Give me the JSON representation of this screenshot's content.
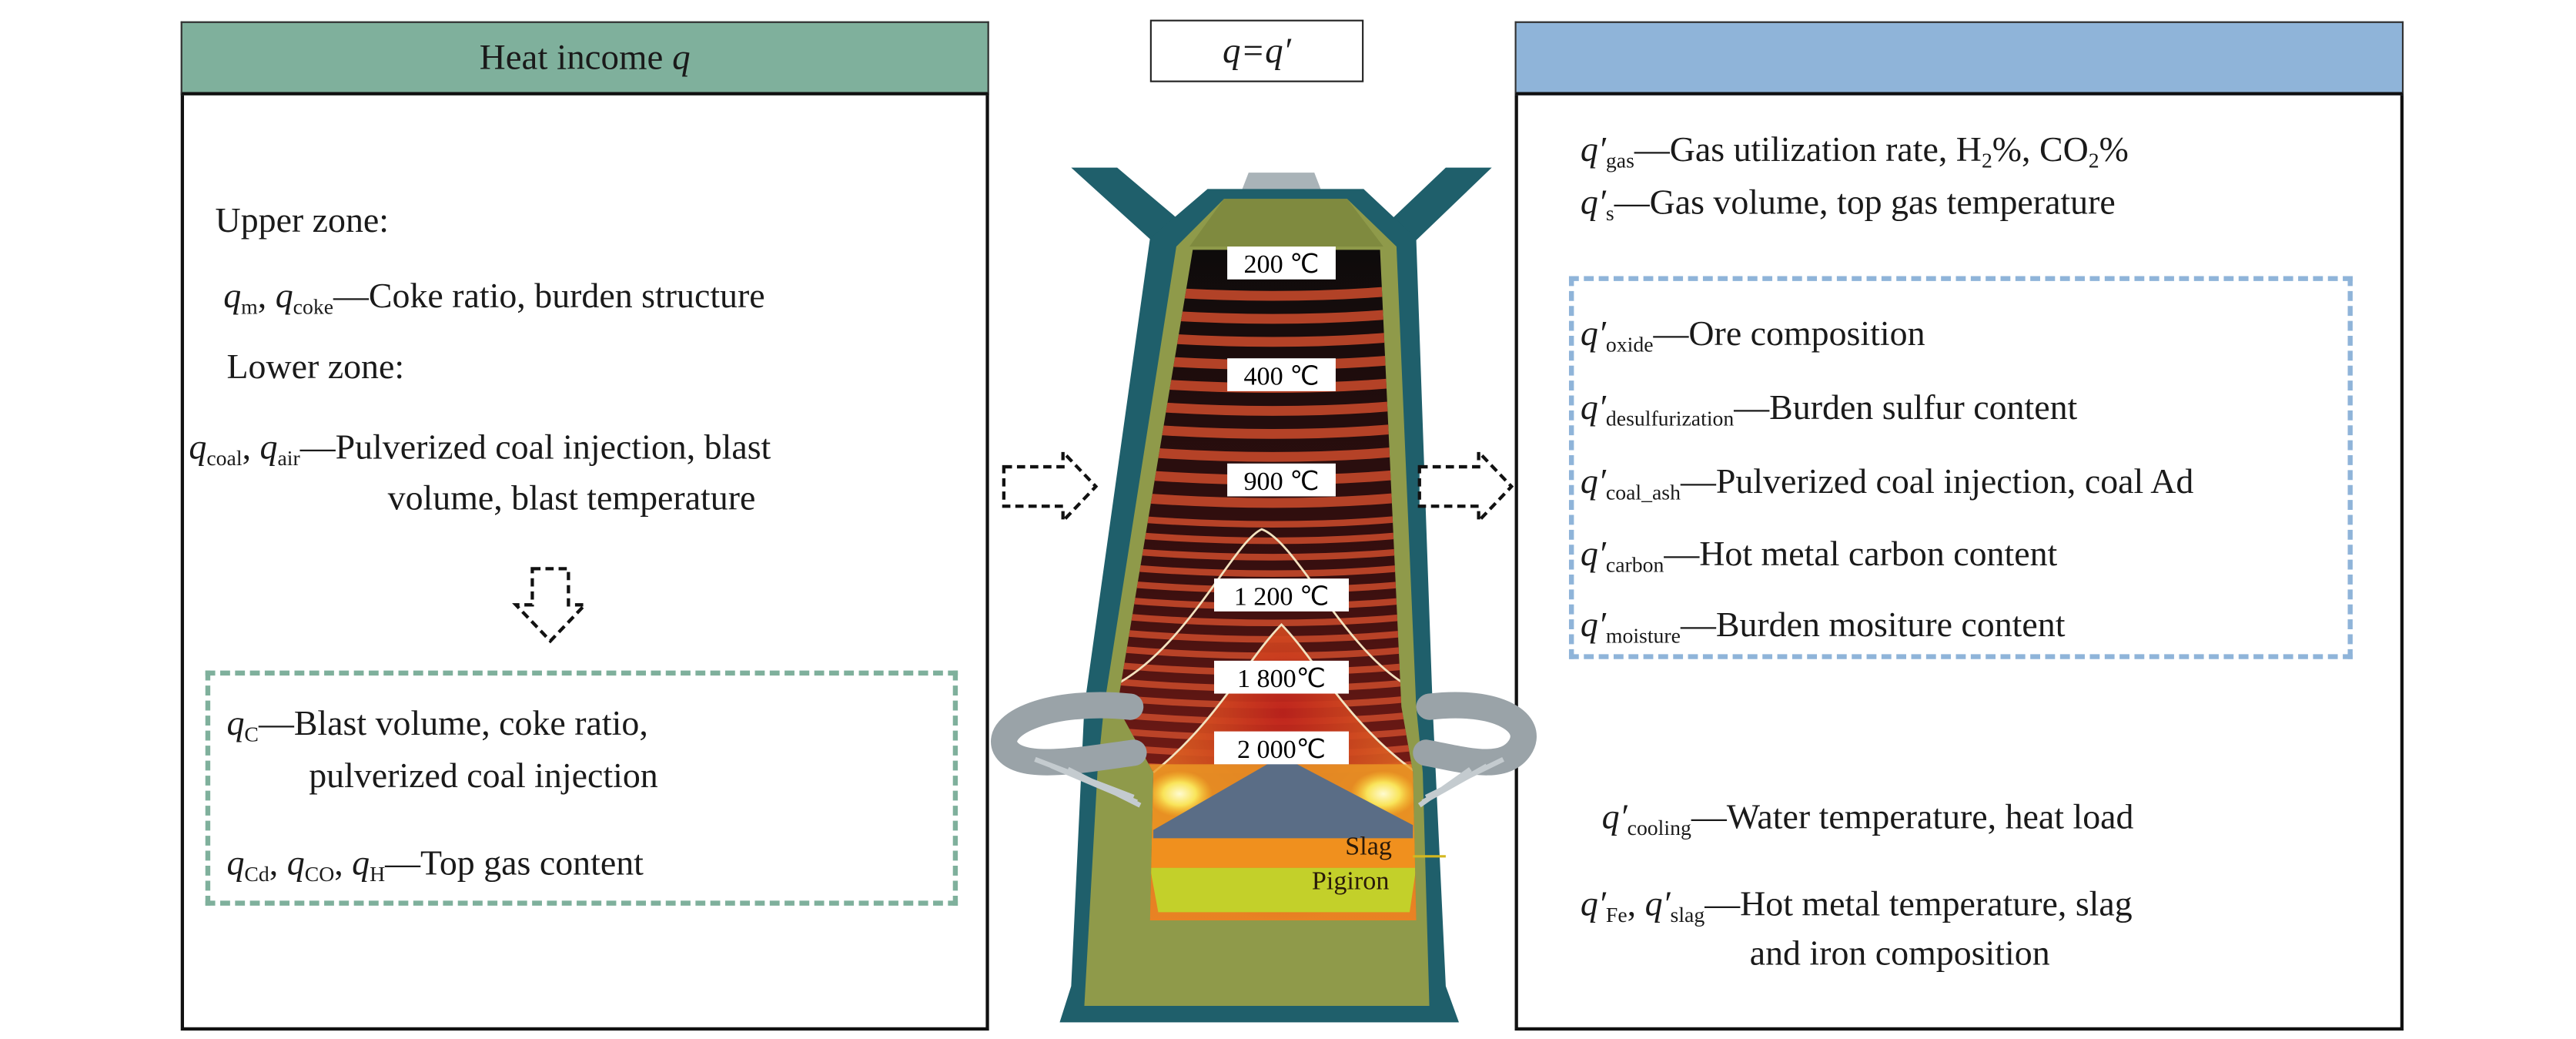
{
  "equation": "q=q′",
  "colors": {
    "income_header": "#7fb09c",
    "expense_header": "#8fb4d9",
    "income_dash": "#7fb09c",
    "expense_dash": "#8fb4d9",
    "shell": "#1f5f6b",
    "lining": "#8f9a4a",
    "slag": "#f0901e",
    "pigiron": "#c3d02a"
  },
  "left_panel": {
    "title": "Heat income ",
    "title_symbol": "q",
    "lines": [
      [
        {
          "t": "Upper zone:"
        }
      ],
      [
        {
          "i": "q"
        },
        {
          "s": "m"
        },
        {
          "t": ", "
        },
        {
          "i": "q"
        },
        {
          "s": "coke"
        },
        {
          "t": "—Coke ratio, burden structure"
        }
      ],
      [
        {
          "t": "Lower zone:"
        }
      ],
      [
        {
          "i": "q"
        },
        {
          "s": "coal"
        },
        {
          "t": ", "
        },
        {
          "i": "q"
        },
        {
          "s": "air"
        },
        {
          "t": "—Pulverized coal injection, blast"
        }
      ],
      [
        {
          "t": "volume, blast temperature"
        }
      ]
    ],
    "box_lines": [
      [
        {
          "i": "q"
        },
        {
          "s": "C"
        },
        {
          "t": "—Blast volume, coke ratio,"
        }
      ],
      [
        {
          "t": "pulverized coal injection"
        }
      ],
      [
        {
          "i": "q"
        },
        {
          "s": "Cd"
        },
        {
          "t": ", "
        },
        {
          "i": "q"
        },
        {
          "s": "CO"
        },
        {
          "t": ", "
        },
        {
          "i": "q"
        },
        {
          "s": "H"
        },
        {
          "t": "—Top gas content"
        }
      ]
    ]
  },
  "right_panel": {
    "title": "",
    "lines": [
      [
        {
          "i": "q′"
        },
        {
          "s": "gas"
        },
        {
          "t": "—Gas utilization rate, H"
        },
        {
          "s": "2"
        },
        {
          "t": "%, CO"
        },
        {
          "s": "2"
        },
        {
          "t": "%"
        }
      ],
      [
        {
          "i": "q′"
        },
        {
          "s": "s"
        },
        {
          "t": "—Gas volume, top gas temperature"
        }
      ]
    ],
    "box_lines": [
      [
        {
          "i": "q′"
        },
        {
          "s": "oxide"
        },
        {
          "t": "—Ore composition"
        }
      ],
      [
        {
          "i": "q′"
        },
        {
          "s": "desulfurization"
        },
        {
          "t": "—Burden sulfur content"
        }
      ],
      [
        {
          "i": "q′"
        },
        {
          "s": "coal_ash"
        },
        {
          "t": "—Pulverized coal injection, coal Ad"
        }
      ],
      [
        {
          "i": "q′"
        },
        {
          "s": "carbon"
        },
        {
          "t": "—Hot metal carbon content"
        }
      ],
      [
        {
          "i": "q′"
        },
        {
          "s": "moisture"
        },
        {
          "t": "—Burden mositure content"
        }
      ]
    ],
    "bottom_lines": [
      [
        {
          "i": "q′"
        },
        {
          "s": "cooling"
        },
        {
          "t": "—Water temperature, heat load"
        }
      ],
      [
        {
          "i": "q′"
        },
        {
          "s": "Fe"
        },
        {
          "t": ", "
        },
        {
          "i": "q′"
        },
        {
          "s": "slag"
        },
        {
          "t": "—Hot metal temperature, slag"
        }
      ],
      [
        {
          "t": "and iron composition"
        }
      ]
    ]
  },
  "furnace": {
    "temperatures": [
      "200 ℃",
      "400 ℃",
      "900 ℃",
      "1 200 ℃",
      "1 800℃",
      "2 000℃"
    ],
    "slag_label": "Slag",
    "pigiron_label": "Pigiron"
  }
}
